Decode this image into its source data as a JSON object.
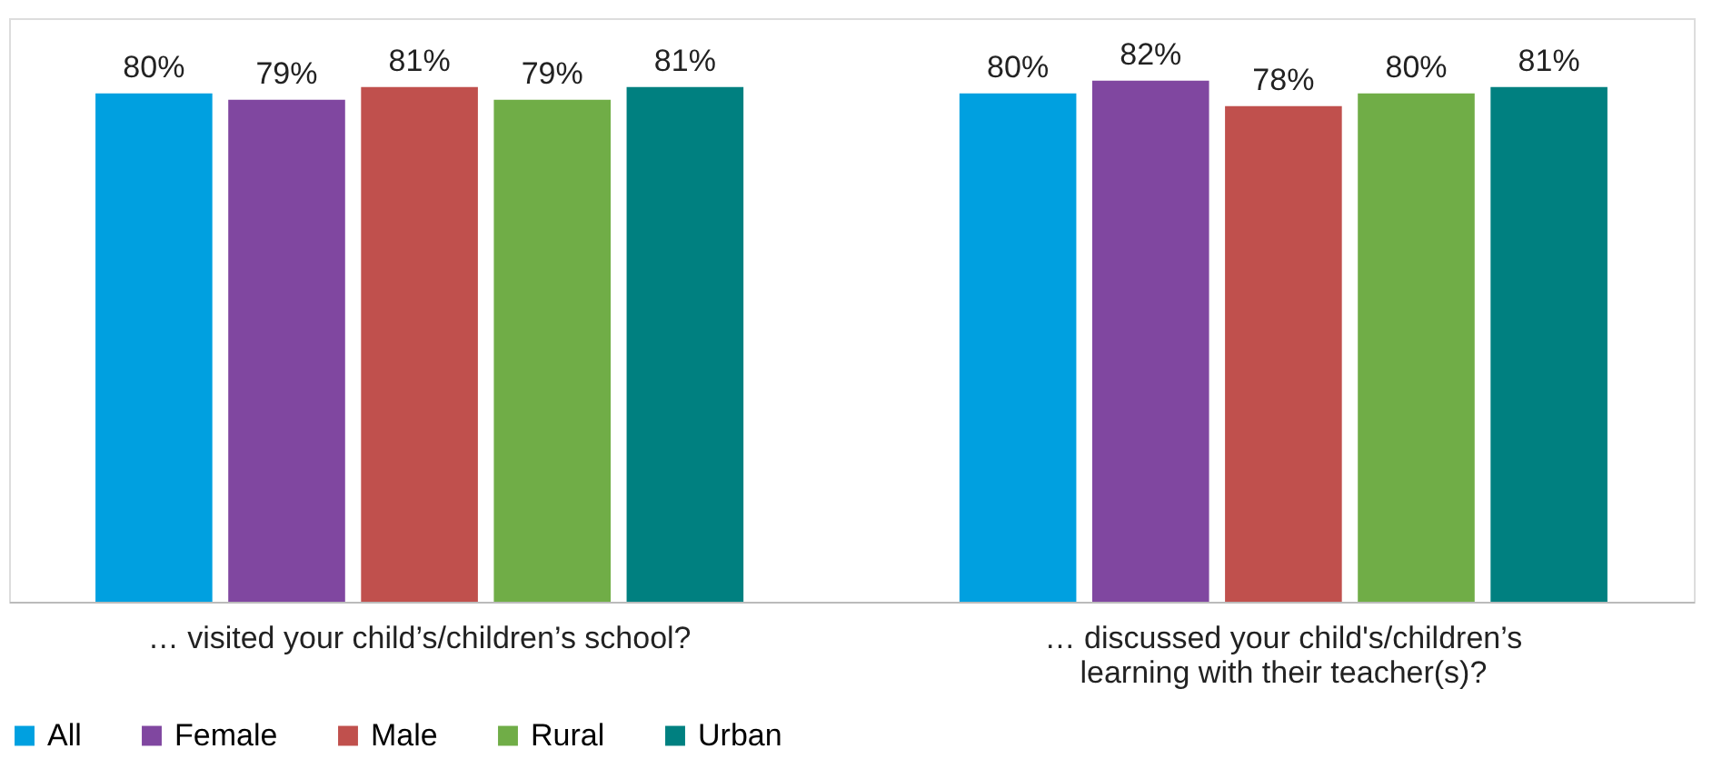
{
  "chart_data": {
    "type": "bar",
    "categories": [
      "… visited your child’s/children’s school?",
      "… discussed your child's/children’s\nlearning with their teacher(s)?"
    ],
    "series": [
      {
        "name": "All",
        "color": "#00a0e0",
        "values": [
          80,
          80
        ],
        "value_labels": [
          "80%",
          "80%"
        ]
      },
      {
        "name": "Female",
        "color": "#8047a0",
        "values": [
          79,
          82
        ],
        "value_labels": [
          "79%",
          "82%"
        ]
      },
      {
        "name": "Male",
        "color": "#c0504d",
        "values": [
          81,
          78
        ],
        "value_labels": [
          "81%",
          "78%"
        ]
      },
      {
        "name": "Rural",
        "color": "#70ad47",
        "values": [
          79,
          80
        ],
        "value_labels": [
          "79%",
          "80%"
        ]
      },
      {
        "name": "Urban",
        "color": "#008080",
        "values": [
          81,
          81
        ],
        "value_labels": [
          "81%",
          "81%"
        ]
      }
    ],
    "grid": false,
    "legend": "bottom"
  }
}
